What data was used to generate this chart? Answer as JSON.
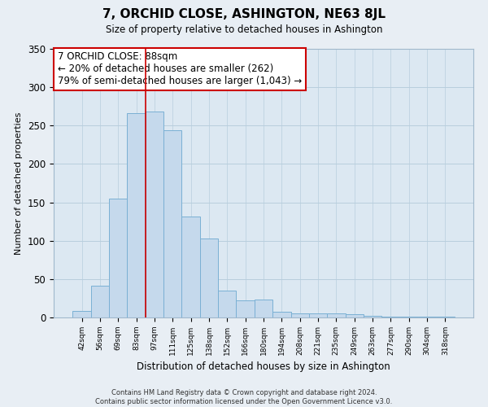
{
  "title": "7, ORCHID CLOSE, ASHINGTON, NE63 8JL",
  "subtitle": "Size of property relative to detached houses in Ashington",
  "xlabel": "Distribution of detached houses by size in Ashington",
  "ylabel": "Number of detached properties",
  "bar_labels": [
    "42sqm",
    "56sqm",
    "69sqm",
    "83sqm",
    "97sqm",
    "111sqm",
    "125sqm",
    "138sqm",
    "152sqm",
    "166sqm",
    "180sqm",
    "194sqm",
    "208sqm",
    "221sqm",
    "235sqm",
    "249sqm",
    "263sqm",
    "277sqm",
    "290sqm",
    "304sqm",
    "318sqm"
  ],
  "bar_values": [
    9,
    41,
    155,
    266,
    268,
    244,
    131,
    103,
    35,
    22,
    23,
    7,
    5,
    5,
    5,
    4,
    2,
    1,
    1,
    1,
    1
  ],
  "bar_color": "#c5d9ec",
  "bar_edge_color": "#7ab0d4",
  "vline_x": 3.5,
  "vline_color": "#cc0000",
  "annotation_title": "7 ORCHID CLOSE: 88sqm",
  "annotation_line1": "← 20% of detached houses are smaller (262)",
  "annotation_line2": "79% of semi-detached houses are larger (1,043) →",
  "annotation_box_color": "#ffffff",
  "annotation_box_edge": "#cc0000",
  "ylim": [
    0,
    350
  ],
  "yticks": [
    0,
    50,
    100,
    150,
    200,
    250,
    300,
    350
  ],
  "footer_line1": "Contains HM Land Registry data © Crown copyright and database right 2024.",
  "footer_line2": "Contains public sector information licensed under the Open Government Licence v3.0.",
  "bg_color": "#e8eef4",
  "plot_bg_color": "#dce8f2"
}
